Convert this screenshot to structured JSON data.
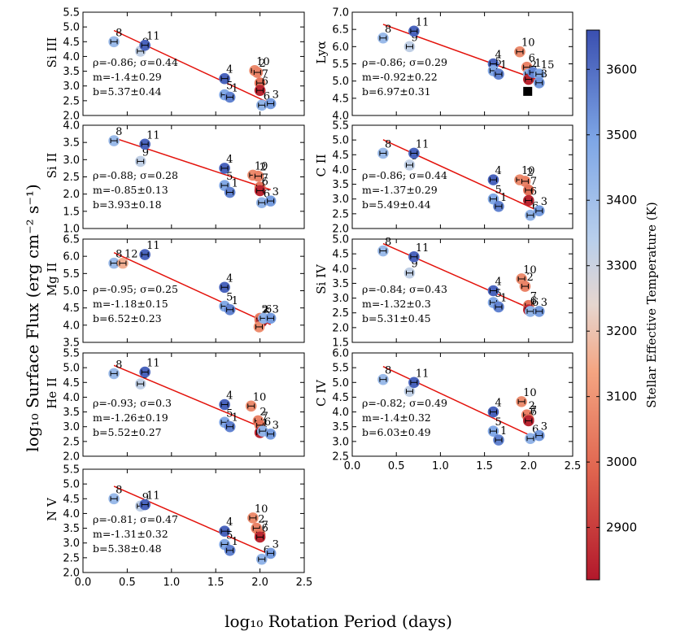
{
  "figure": {
    "xlabel": "log₁₀ Rotation Period (days)",
    "ylabel": "log₁₀ Surface Flux (erg cm⁻² s⁻¹)",
    "colorbar": {
      "label": "Stellar Effective Temperature (K)",
      "range": [
        2820,
        3660
      ],
      "ticks": [
        2900,
        3000,
        3100,
        3200,
        3300,
        3400,
        3500,
        3600
      ]
    }
  },
  "chart_data": [
    {
      "type": "scatter",
      "name": "Si III",
      "stat_rho": "ρ=-0.86; σ=0.44",
      "stat_m": "m=-1.4±0.29",
      "stat_b": "b=5.37±0.44",
      "xlim": [
        0,
        2.5
      ],
      "ylim": [
        2.0,
        5.5
      ],
      "yticks": [
        "2.0",
        "2.5",
        "3.0",
        "3.5",
        "4.0",
        "4.5",
        "5.0",
        "5.5"
      ],
      "xticks": [
        "0.0",
        "0.5",
        "1.0",
        "1.5",
        "2.0",
        "2.5"
      ],
      "show_xtick_labels": false,
      "fit": {
        "m": -1.4,
        "b": 5.37,
        "x": [
          0.35,
          2.12
        ]
      },
      "points": [
        {
          "id": "8",
          "x": 0.35,
          "y": 4.5,
          "temp": 3420
        },
        {
          "id": "9",
          "x": 0.65,
          "y": 4.18,
          "temp": 3320
        },
        {
          "id": "11",
          "x": 0.7,
          "y": 4.38,
          "temp": 3620
        },
        {
          "id": "4",
          "x": 1.6,
          "y": 3.25,
          "temp": 3620
        },
        {
          "id": "5",
          "x": 1.6,
          "y": 2.7,
          "temp": 3480
        },
        {
          "id": "1",
          "x": 1.66,
          "y": 2.62,
          "temp": 3560
        },
        {
          "id": "10",
          "x": 1.94,
          "y": 3.52,
          "temp": 3080
        },
        {
          "id": "2",
          "x": 1.97,
          "y": 3.46,
          "temp": 3060
        },
        {
          "id": "7",
          "x": 2.0,
          "y": 3.1,
          "temp": 3020
        },
        {
          "id": "6",
          "x": 2.0,
          "y": 2.85,
          "temp": 2850
        },
        {
          "id": "6",
          "x": 2.02,
          "y": 2.35,
          "temp": 3440
        },
        {
          "id": "3",
          "x": 2.12,
          "y": 2.4,
          "temp": 3510
        }
      ]
    },
    {
      "type": "scatter",
      "name": "Lyα",
      "stat_rho": "ρ=-0.86; σ=0.29",
      "stat_m": "m=-0.92±0.22",
      "stat_b": "b=6.97±0.31",
      "xlim": [
        0,
        2.5
      ],
      "ylim": [
        4.0,
        7.0
      ],
      "yticks": [
        "4.0",
        "4.5",
        "5.0",
        "5.5",
        "6.0",
        "6.5",
        "7.0"
      ],
      "xticks": [
        "0.0",
        "0.5",
        "1.0",
        "1.5",
        "2.0",
        "2.5"
      ],
      "show_xtick_labels": false,
      "fit": {
        "m": -0.92,
        "b": 6.97,
        "x": [
          0.35,
          2.12
        ]
      },
      "points": [
        {
          "id": "8",
          "x": 0.35,
          "y": 6.25,
          "temp": 3420
        },
        {
          "id": "9",
          "x": 0.65,
          "y": 6.0,
          "temp": 3320
        },
        {
          "id": "11",
          "x": 0.7,
          "y": 6.45,
          "temp": 3620
        },
        {
          "id": "4",
          "x": 1.6,
          "y": 5.5,
          "temp": 3620
        },
        {
          "id": "5",
          "x": 1.6,
          "y": 5.3,
          "temp": 3480
        },
        {
          "id": "1",
          "x": 1.66,
          "y": 5.2,
          "temp": 3560
        },
        {
          "id": "10",
          "x": 1.9,
          "y": 5.85,
          "temp": 3080
        },
        {
          "id": "6",
          "x": 1.98,
          "y": 5.4,
          "temp": 3060
        },
        {
          "id": "2",
          "x": 2.0,
          "y": 5.2,
          "temp": 3440
        },
        {
          "id": "7",
          "x": 2.0,
          "y": 5.05,
          "temp": 2850
        },
        {
          "id": "1",
          "x": 2.05,
          "y": 5.25,
          "temp": 3560
        },
        {
          "id": "15",
          "x": 2.12,
          "y": 5.2,
          "temp": 3480
        },
        {
          "id": "3",
          "x": 2.12,
          "y": 4.95,
          "temp": 3520
        }
      ],
      "extra_marker": {
        "label": "black square",
        "x": 1.99,
        "y": 4.7
      }
    },
    {
      "type": "scatter",
      "name": "Si II",
      "stat_rho": "ρ=-0.88; σ=0.28",
      "stat_m": "m=-0.85±0.13",
      "stat_b": "b=3.93±0.18",
      "xlim": [
        0,
        2.5
      ],
      "ylim": [
        1.0,
        4.0
      ],
      "yticks": [
        "1.0",
        "1.5",
        "2.0",
        "2.5",
        "3.0",
        "3.5",
        "4.0"
      ],
      "xticks": [
        "0.0",
        "0.5",
        "1.0",
        "1.5",
        "2.0",
        "2.5"
      ],
      "show_xtick_labels": false,
      "fit": {
        "m": -0.85,
        "b": 3.93,
        "x": [
          0.35,
          2.12
        ]
      },
      "points": [
        {
          "id": "8",
          "x": 0.35,
          "y": 3.55,
          "temp": 3420
        },
        {
          "id": "9",
          "x": 0.65,
          "y": 2.95,
          "temp": 3320
        },
        {
          "id": "11",
          "x": 0.7,
          "y": 3.45,
          "temp": 3620
        },
        {
          "id": "4",
          "x": 1.6,
          "y": 2.75,
          "temp": 3620
        },
        {
          "id": "5",
          "x": 1.6,
          "y": 2.25,
          "temp": 3480
        },
        {
          "id": "1",
          "x": 1.66,
          "y": 2.05,
          "temp": 3560
        },
        {
          "id": "10",
          "x": 1.92,
          "y": 2.55,
          "temp": 3080
        },
        {
          "id": "2",
          "x": 1.98,
          "y": 2.52,
          "temp": 3060
        },
        {
          "id": "7",
          "x": 2.0,
          "y": 2.2,
          "temp": 3020
        },
        {
          "id": "6",
          "x": 2.0,
          "y": 2.1,
          "temp": 2850
        },
        {
          "id": "6",
          "x": 2.02,
          "y": 1.75,
          "temp": 3440
        },
        {
          "id": "3",
          "x": 2.12,
          "y": 1.8,
          "temp": 3510
        }
      ]
    },
    {
      "type": "scatter",
      "name": "C II",
      "stat_rho": "ρ=-0.86; σ=0.44",
      "stat_m": "m=-1.37±0.29",
      "stat_b": "b=5.49±0.44",
      "xlim": [
        0,
        2.5
      ],
      "ylim": [
        2.0,
        5.5
      ],
      "yticks": [
        "2.0",
        "2.5",
        "3.0",
        "3.5",
        "4.0",
        "4.5",
        "5.0",
        "5.5"
      ],
      "xticks": [
        "0.0",
        "0.5",
        "1.0",
        "1.5",
        "2.0",
        "2.5"
      ],
      "show_xtick_labels": false,
      "fit": {
        "m": -1.37,
        "b": 5.49,
        "x": [
          0.35,
          2.12
        ]
      },
      "points": [
        {
          "id": "8",
          "x": 0.35,
          "y": 4.55,
          "temp": 3420
        },
        {
          "id": "9",
          "x": 0.65,
          "y": 4.15,
          "temp": 3320
        },
        {
          "id": "11",
          "x": 0.7,
          "y": 4.55,
          "temp": 3620
        },
        {
          "id": "4",
          "x": 1.6,
          "y": 3.65,
          "temp": 3620
        },
        {
          "id": "5",
          "x": 1.6,
          "y": 3.0,
          "temp": 3480
        },
        {
          "id": "1",
          "x": 1.66,
          "y": 2.75,
          "temp": 3560
        },
        {
          "id": "10",
          "x": 1.9,
          "y": 3.65,
          "temp": 3080
        },
        {
          "id": "2",
          "x": 1.96,
          "y": 3.6,
          "temp": 3060
        },
        {
          "id": "7",
          "x": 2.0,
          "y": 3.3,
          "temp": 3020
        },
        {
          "id": "6",
          "x": 2.0,
          "y": 2.95,
          "temp": 2850
        },
        {
          "id": "6",
          "x": 2.02,
          "y": 2.45,
          "temp": 3440
        },
        {
          "id": "3",
          "x": 2.12,
          "y": 2.6,
          "temp": 3510
        }
      ]
    },
    {
      "type": "scatter",
      "name": "Mg II",
      "stat_rho": "ρ=-0.95; σ=0.25",
      "stat_m": "m=-1.18±0.15",
      "stat_b": "b=6.52±0.23",
      "xlim": [
        0,
        2.5
      ],
      "ylim": [
        3.5,
        6.5
      ],
      "yticks": [
        "3.5",
        "4.0",
        "4.5",
        "5.0",
        "5.5",
        "6.0",
        "6.5"
      ],
      "xticks": [
        "0.0",
        "0.5",
        "1.0",
        "1.5",
        "2.0",
        "2.5"
      ],
      "show_xtick_labels": false,
      "fit": {
        "m": -1.18,
        "b": 6.52,
        "x": [
          0.35,
          2.12
        ]
      },
      "points": [
        {
          "id": "8",
          "x": 0.35,
          "y": 5.8,
          "temp": 3420
        },
        {
          "id": "12",
          "x": 0.45,
          "y": 5.8,
          "temp": 3160
        },
        {
          "id": "11",
          "x": 0.7,
          "y": 6.05,
          "temp": 3620
        },
        {
          "id": "4",
          "x": 1.6,
          "y": 5.1,
          "temp": 3620
        },
        {
          "id": "5",
          "x": 1.6,
          "y": 4.55,
          "temp": 3480
        },
        {
          "id": "1",
          "x": 1.66,
          "y": 4.45,
          "temp": 3560
        },
        {
          "id": "2",
          "x": 2.0,
          "y": 4.2,
          "temp": 3060
        },
        {
          "id": "7",
          "x": 2.0,
          "y": 4.15,
          "temp": 3020
        },
        {
          "id": "6",
          "x": 2.02,
          "y": 4.1,
          "temp": 2850
        },
        {
          "id": "10",
          "x": 1.99,
          "y": 3.95,
          "temp": 3080
        },
        {
          "id": "6",
          "x": 2.04,
          "y": 4.2,
          "temp": 3440
        },
        {
          "id": "3",
          "x": 2.12,
          "y": 4.2,
          "temp": 3510
        }
      ]
    },
    {
      "type": "scatter",
      "name": "Si IV",
      "stat_rho": "ρ=-0.84; σ=0.43",
      "stat_m": "m=-1.32±0.3",
      "stat_b": "b=5.31±0.45",
      "xlim": [
        0,
        2.5
      ],
      "ylim": [
        1.5,
        5.0
      ],
      "yticks": [
        "1.5",
        "2.0",
        "2.5",
        "3.0",
        "3.5",
        "4.0",
        "4.5",
        "5.0"
      ],
      "xticks": [
        "0.0",
        "0.5",
        "1.0",
        "1.5",
        "2.0",
        "2.5"
      ],
      "show_xtick_labels": false,
      "fit": {
        "m": -1.32,
        "b": 5.31,
        "x": [
          0.35,
          2.12
        ]
      },
      "points": [
        {
          "id": "8",
          "x": 0.35,
          "y": 4.6,
          "temp": 3420
        },
        {
          "id": "9",
          "x": 0.65,
          "y": 3.85,
          "temp": 3320
        },
        {
          "id": "11",
          "x": 0.7,
          "y": 4.4,
          "temp": 3620
        },
        {
          "id": "4",
          "x": 1.6,
          "y": 3.25,
          "temp": 3620
        },
        {
          "id": "5",
          "x": 1.6,
          "y": 2.85,
          "temp": 3480
        },
        {
          "id": "1",
          "x": 1.66,
          "y": 2.7,
          "temp": 3560
        },
        {
          "id": "10",
          "x": 1.92,
          "y": 3.65,
          "temp": 3080
        },
        {
          "id": "2",
          "x": 1.96,
          "y": 3.4,
          "temp": 3060
        },
        {
          "id": "7",
          "x": 2.0,
          "y": 2.75,
          "temp": 3020
        },
        {
          "id": "6",
          "x": 2.0,
          "y": 2.6,
          "temp": 2850
        },
        {
          "id": "6",
          "x": 2.02,
          "y": 2.55,
          "temp": 3440
        },
        {
          "id": "3",
          "x": 2.12,
          "y": 2.55,
          "temp": 3510
        }
      ]
    },
    {
      "type": "scatter",
      "name": "He II",
      "stat_rho": "ρ=-0.93; σ=0.3",
      "stat_m": "m=-1.26±0.19",
      "stat_b": "b=5.52±0.27",
      "xlim": [
        0,
        2.5
      ],
      "ylim": [
        2.0,
        5.5
      ],
      "yticks": [
        "2.0",
        "2.5",
        "3.0",
        "3.5",
        "4.0",
        "4.5",
        "5.0",
        "5.5"
      ],
      "xticks": [
        "0.0",
        "0.5",
        "1.0",
        "1.5",
        "2.0",
        "2.5"
      ],
      "show_xtick_labels": false,
      "fit": {
        "m": -1.26,
        "b": 5.52,
        "x": [
          0.35,
          2.12
        ]
      },
      "points": [
        {
          "id": "8",
          "x": 0.35,
          "y": 4.8,
          "temp": 3420
        },
        {
          "id": "9",
          "x": 0.65,
          "y": 4.45,
          "temp": 3320
        },
        {
          "id": "11",
          "x": 0.7,
          "y": 4.85,
          "temp": 3620
        },
        {
          "id": "4",
          "x": 1.6,
          "y": 3.75,
          "temp": 3620
        },
        {
          "id": "5",
          "x": 1.6,
          "y": 3.15,
          "temp": 3480
        },
        {
          "id": "1",
          "x": 1.66,
          "y": 3.0,
          "temp": 3560
        },
        {
          "id": "10",
          "x": 1.9,
          "y": 3.7,
          "temp": 3080
        },
        {
          "id": "2",
          "x": 1.98,
          "y": 3.2,
          "temp": 3060
        },
        {
          "id": "7",
          "x": 2.0,
          "y": 3.05,
          "temp": 3020
        },
        {
          "id": "1",
          "x": 2.0,
          "y": 2.8,
          "temp": 2850
        },
        {
          "id": "6",
          "x": 2.03,
          "y": 2.85,
          "temp": 3440
        },
        {
          "id": "3",
          "x": 2.12,
          "y": 2.75,
          "temp": 3510
        }
      ]
    },
    {
      "type": "scatter",
      "name": "C IV",
      "stat_rho": "ρ=-0.82; σ=0.49",
      "stat_m": "m=-1.4±0.32",
      "stat_b": "b=6.03±0.49",
      "xlim": [
        0,
        2.5
      ],
      "ylim": [
        2.5,
        6.0
      ],
      "yticks": [
        "2.5",
        "3.0",
        "3.5",
        "4.0",
        "4.5",
        "5.0",
        "5.5",
        "6.0"
      ],
      "xticks": [
        "0.0",
        "0.5",
        "1.0",
        "1.5",
        "2.0",
        "2.5"
      ],
      "show_xtick_labels": true,
      "fit": {
        "m": -1.4,
        "b": 6.03,
        "x": [
          0.35,
          2.12
        ]
      },
      "points": [
        {
          "id": "8",
          "x": 0.35,
          "y": 5.1,
          "temp": 3420
        },
        {
          "id": "9",
          "x": 0.65,
          "y": 4.7,
          "temp": 3320
        },
        {
          "id": "11",
          "x": 0.7,
          "y": 5.0,
          "temp": 3620
        },
        {
          "id": "4",
          "x": 1.6,
          "y": 4.0,
          "temp": 3620
        },
        {
          "id": "5",
          "x": 1.6,
          "y": 3.35,
          "temp": 3480
        },
        {
          "id": "1",
          "x": 1.66,
          "y": 3.05,
          "temp": 3560
        },
        {
          "id": "10",
          "x": 1.92,
          "y": 4.35,
          "temp": 3080
        },
        {
          "id": "2",
          "x": 1.98,
          "y": 3.9,
          "temp": 3060
        },
        {
          "id": "7",
          "x": 2.0,
          "y": 3.75,
          "temp": 3020
        },
        {
          "id": "6",
          "x": 2.0,
          "y": 3.7,
          "temp": 2850
        },
        {
          "id": "6",
          "x": 2.02,
          "y": 3.1,
          "temp": 3440
        },
        {
          "id": "3",
          "x": 2.12,
          "y": 3.2,
          "temp": 3510
        }
      ]
    },
    {
      "type": "scatter",
      "name": "N V",
      "stat_rho": "ρ=-0.81; σ=0.47",
      "stat_m": "m=-1.31±0.32",
      "stat_b": "b=5.38±0.48",
      "xlim": [
        0,
        2.5
      ],
      "ylim": [
        2.0,
        5.5
      ],
      "yticks": [
        "2.0",
        "2.5",
        "3.0",
        "3.5",
        "4.0",
        "4.5",
        "5.0",
        "5.5"
      ],
      "xticks": [
        "0.0",
        "0.5",
        "1.0",
        "1.5",
        "2.0",
        "2.5"
      ],
      "show_xtick_labels": true,
      "fit": {
        "m": -1.31,
        "b": 5.38,
        "x": [
          0.35,
          2.12
        ]
      },
      "points": [
        {
          "id": "8",
          "x": 0.35,
          "y": 4.5,
          "temp": 3420
        },
        {
          "id": "9",
          "x": 0.65,
          "y": 4.25,
          "temp": 3320
        },
        {
          "id": "11",
          "x": 0.7,
          "y": 4.3,
          "temp": 3620
        },
        {
          "id": "4",
          "x": 1.6,
          "y": 3.4,
          "temp": 3620
        },
        {
          "id": "5",
          "x": 1.6,
          "y": 2.95,
          "temp": 3480
        },
        {
          "id": "1",
          "x": 1.66,
          "y": 2.75,
          "temp": 3560
        },
        {
          "id": "10",
          "x": 1.92,
          "y": 3.85,
          "temp": 3080
        },
        {
          "id": "2",
          "x": 1.96,
          "y": 3.5,
          "temp": 3060
        },
        {
          "id": "7",
          "x": 2.0,
          "y": 3.3,
          "temp": 3020
        },
        {
          "id": "6",
          "x": 2.0,
          "y": 3.2,
          "temp": 2850
        },
        {
          "id": "6",
          "x": 2.02,
          "y": 2.45,
          "temp": 3440
        },
        {
          "id": "3",
          "x": 2.12,
          "y": 2.65,
          "temp": 3510
        }
      ]
    }
  ]
}
